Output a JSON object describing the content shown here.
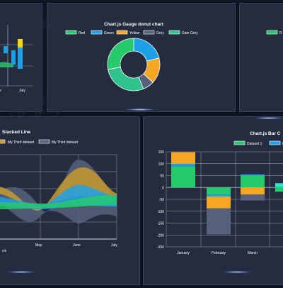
{
  "charts": {
    "bar_top_left": {
      "type": "bar",
      "tick_labels": [
        "e",
        "July"
      ]
    },
    "donut": {
      "type": "pie",
      "title": "Chart.js Gauge donut chart",
      "legend": [
        "Red",
        "Green",
        "Yellow",
        "Grey",
        "Dark Grey"
      ],
      "colors": [
        "#27c96d",
        "#1da1e6",
        "#f5a623",
        "#56627b",
        "#2fc28d"
      ]
    },
    "right_partial": {
      "legend_fragment": "R"
    },
    "stacked_line": {
      "type": "area",
      "title": "Stacked Line",
      "legend": [
        "My Third dataset",
        "My Third dataset"
      ],
      "x_labels": [
        "May",
        "June",
        "July"
      ],
      "x_fragment": "nth"
    },
    "stacked_bar": {
      "type": "bar",
      "title": "Chart.js Bar C",
      "legend": [
        "Dataset 1",
        "D"
      ],
      "y_ticks": [
        "150",
        "100",
        "50",
        "0",
        "-50",
        "-100",
        "-150",
        "-200",
        "-250"
      ],
      "x_labels": [
        "January",
        "February",
        "March"
      ]
    }
  },
  "chart_data": [
    {
      "type": "bar",
      "title": "",
      "categories": [
        "July"
      ],
      "note": "partially visible floating bar chart"
    },
    {
      "type": "pie",
      "title": "Chart.js Gauge donut chart",
      "labels": [
        "Red",
        "Green",
        "Yellow",
        "Grey",
        "Dark Grey"
      ],
      "values": [
        28,
        21,
        16,
        7,
        28
      ],
      "colors": [
        "#27c96d",
        "#1da1e6",
        "#f5a623",
        "#56627b",
        "#2fc28d"
      ],
      "legend": "top"
    },
    {
      "type": "area",
      "title": "Stacked Line",
      "categories": [
        "May",
        "June",
        "July"
      ],
      "series_names": [
        "My Third dataset",
        "My Third dataset"
      ],
      "grid": true,
      "legend": "top"
    },
    {
      "type": "bar",
      "title": "Chart.js Bar C",
      "categories": [
        "January",
        "February",
        "March"
      ],
      "ylim": [
        -250,
        150
      ],
      "series": [
        {
          "name": "Dataset 1",
          "color": "#27c96d",
          "values": [
            88,
            -30,
            50
          ]
        },
        {
          "name": "D",
          "color": "#1da1e6",
          "values": [
            12,
            -8,
            5
          ]
        },
        {
          "name": "",
          "color": "#f5a623",
          "values": [
            50,
            -50,
            -30
          ]
        },
        {
          "name": "",
          "color": "#56627b",
          "values": [
            0,
            -110,
            -25
          ]
        }
      ],
      "grid": true,
      "legend": "top"
    }
  ]
}
